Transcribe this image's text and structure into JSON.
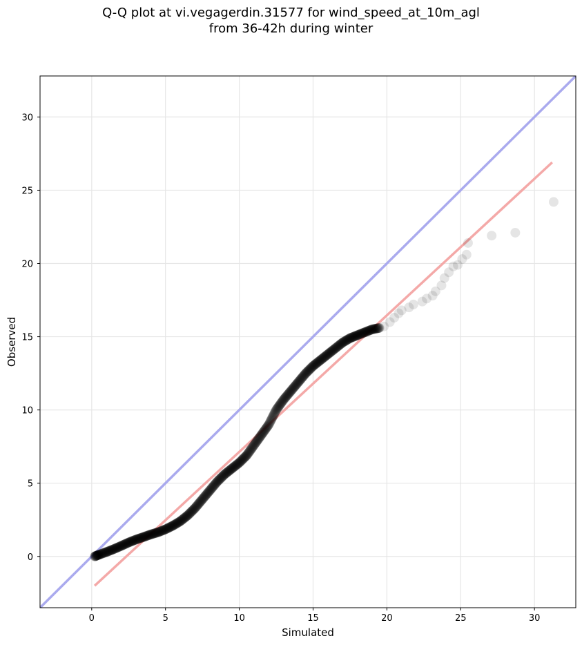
{
  "chart_data": {
    "type": "scatter",
    "title_line1": "Q-Q plot at vi.vegagerdin.31577 for wind_speed_at_10m_agl",
    "title_line2": "from 36-42h during winter",
    "xlabel": "Simulated",
    "ylabel": "Observed",
    "xlim": [
      -3.5,
      32.8
    ],
    "ylim": [
      -3.5,
      32.8
    ],
    "xticks": [
      0,
      5,
      10,
      15,
      20,
      25,
      30
    ],
    "yticks": [
      0,
      5,
      10,
      15,
      20,
      25,
      30
    ],
    "grid": true,
    "reference_line": {
      "name": "1:1 line",
      "color": "#aaaaee",
      "points": [
        [
          -3.5,
          -3.5
        ],
        [
          32.8,
          32.8
        ]
      ]
    },
    "fit_line": {
      "name": "regression line",
      "color": "#f4a9a8",
      "points": [
        [
          0.2,
          -2.0
        ],
        [
          31.2,
          26.9
        ]
      ]
    },
    "points_color": "#000000",
    "qq_curve": [
      [
        0.2,
        0.0
      ],
      [
        0.5,
        0.12
      ],
      [
        1.0,
        0.3
      ],
      [
        1.5,
        0.5
      ],
      [
        2.0,
        0.72
      ],
      [
        2.5,
        0.95
      ],
      [
        3.0,
        1.15
      ],
      [
        3.5,
        1.32
      ],
      [
        4.0,
        1.5
      ],
      [
        4.5,
        1.65
      ],
      [
        5.0,
        1.85
      ],
      [
        5.5,
        2.1
      ],
      [
        6.0,
        2.4
      ],
      [
        6.5,
        2.8
      ],
      [
        7.0,
        3.3
      ],
      [
        7.5,
        3.9
      ],
      [
        8.0,
        4.5
      ],
      [
        8.5,
        5.1
      ],
      [
        9.0,
        5.6
      ],
      [
        9.5,
        6.0
      ],
      [
        10.0,
        6.4
      ],
      [
        10.5,
        6.9
      ],
      [
        11.0,
        7.6
      ],
      [
        11.5,
        8.3
      ],
      [
        12.0,
        9.0
      ],
      [
        12.5,
        10.0
      ],
      [
        13.0,
        10.7
      ],
      [
        13.5,
        11.3
      ],
      [
        14.0,
        11.9
      ],
      [
        14.5,
        12.5
      ],
      [
        15.0,
        13.0
      ],
      [
        15.5,
        13.4
      ],
      [
        16.0,
        13.8
      ],
      [
        16.5,
        14.2
      ],
      [
        17.0,
        14.6
      ],
      [
        17.5,
        14.9
      ],
      [
        18.0,
        15.1
      ],
      [
        18.5,
        15.3
      ],
      [
        19.0,
        15.5
      ],
      [
        19.5,
        15.6
      ]
    ],
    "tail_points": [
      [
        19.8,
        15.7
      ],
      [
        20.2,
        16.0
      ],
      [
        20.5,
        16.3
      ],
      [
        20.8,
        16.6
      ],
      [
        21.0,
        16.8
      ],
      [
        21.5,
        17.0
      ],
      [
        21.8,
        17.2
      ],
      [
        22.4,
        17.4
      ],
      [
        22.7,
        17.6
      ],
      [
        23.1,
        17.8
      ],
      [
        23.3,
        18.1
      ],
      [
        23.7,
        18.5
      ],
      [
        23.9,
        19.0
      ],
      [
        24.2,
        19.4
      ],
      [
        24.5,
        19.8
      ],
      [
        24.8,
        19.9
      ],
      [
        25.1,
        20.3
      ],
      [
        25.4,
        20.6
      ],
      [
        25.5,
        21.4
      ],
      [
        27.1,
        21.9
      ],
      [
        28.7,
        22.1
      ],
      [
        31.3,
        24.2
      ]
    ]
  }
}
